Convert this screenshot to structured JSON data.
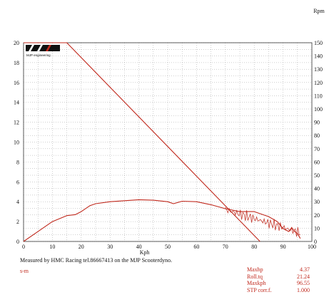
{
  "chart_data": {
    "type": "line",
    "title": "",
    "xlabel": "Kph",
    "ylabel_left": "",
    "ylabel_right": "Rpm",
    "xlim": [
      0,
      100
    ],
    "ylim_left": [
      0,
      20
    ],
    "ylim_right": [
      0,
      150
    ],
    "x_ticks": [
      "0",
      "10",
      "20",
      "30",
      "40",
      "50",
      "60",
      "70",
      "80",
      "90",
      "100"
    ],
    "y_left_ticks": [
      "0",
      "2",
      "4",
      "6",
      "8",
      "10",
      "12",
      "14",
      "16",
      "18",
      "20"
    ],
    "y_right_ticks": [
      "0",
      "10",
      "20",
      "30",
      "40",
      "50",
      "60",
      "70",
      "80",
      "90",
      "100",
      "110",
      "120",
      "130",
      "140",
      "150"
    ],
    "grid": true,
    "logo_text": "MJP engineering",
    "series": [
      {
        "color": "#c0281c",
        "axis": "left",
        "points": [
          [
            0,
            0
          ],
          [
            5,
            1.0
          ],
          [
            10,
            2.0
          ],
          [
            15,
            2.6
          ],
          [
            18,
            2.7
          ],
          [
            20,
            3.0
          ],
          [
            23,
            3.6
          ],
          [
            25,
            3.8
          ],
          [
            30,
            4.0
          ],
          [
            35,
            4.1
          ],
          [
            40,
            4.2
          ],
          [
            45,
            4.15
          ],
          [
            50,
            4.0
          ],
          [
            52,
            3.8
          ],
          [
            55,
            4.05
          ],
          [
            60,
            4.0
          ],
          [
            65,
            3.7
          ],
          [
            70,
            3.3
          ],
          [
            75,
            3.0
          ],
          [
            80,
            3.0
          ],
          [
            85,
            2.5
          ],
          [
            88,
            2.0
          ],
          [
            90,
            1.3
          ],
          [
            92,
            1.0
          ],
          [
            93,
            1.4
          ],
          [
            94,
            1.0
          ],
          [
            95,
            0.8
          ],
          [
            96,
            0.3
          ]
        ]
      },
      {
        "color": "#c0281c",
        "axis": "left",
        "points": [
          [
            0,
            20
          ],
          [
            15,
            20
          ],
          [
            82,
            0
          ]
        ]
      }
    ]
  },
  "footer": {
    "measured_by": "Measured by HMC Racing tel.86667413 on the MJP Scooterdyno.",
    "run_label": "s-m"
  },
  "stats": [
    {
      "label": "Maxhp",
      "value": "4.37"
    },
    {
      "label": "Roll.tq",
      "value": "21.24"
    },
    {
      "label": "Maxkph",
      "value": "96.55"
    },
    {
      "label": "STP corr.f.",
      "value": "1.000"
    }
  ]
}
